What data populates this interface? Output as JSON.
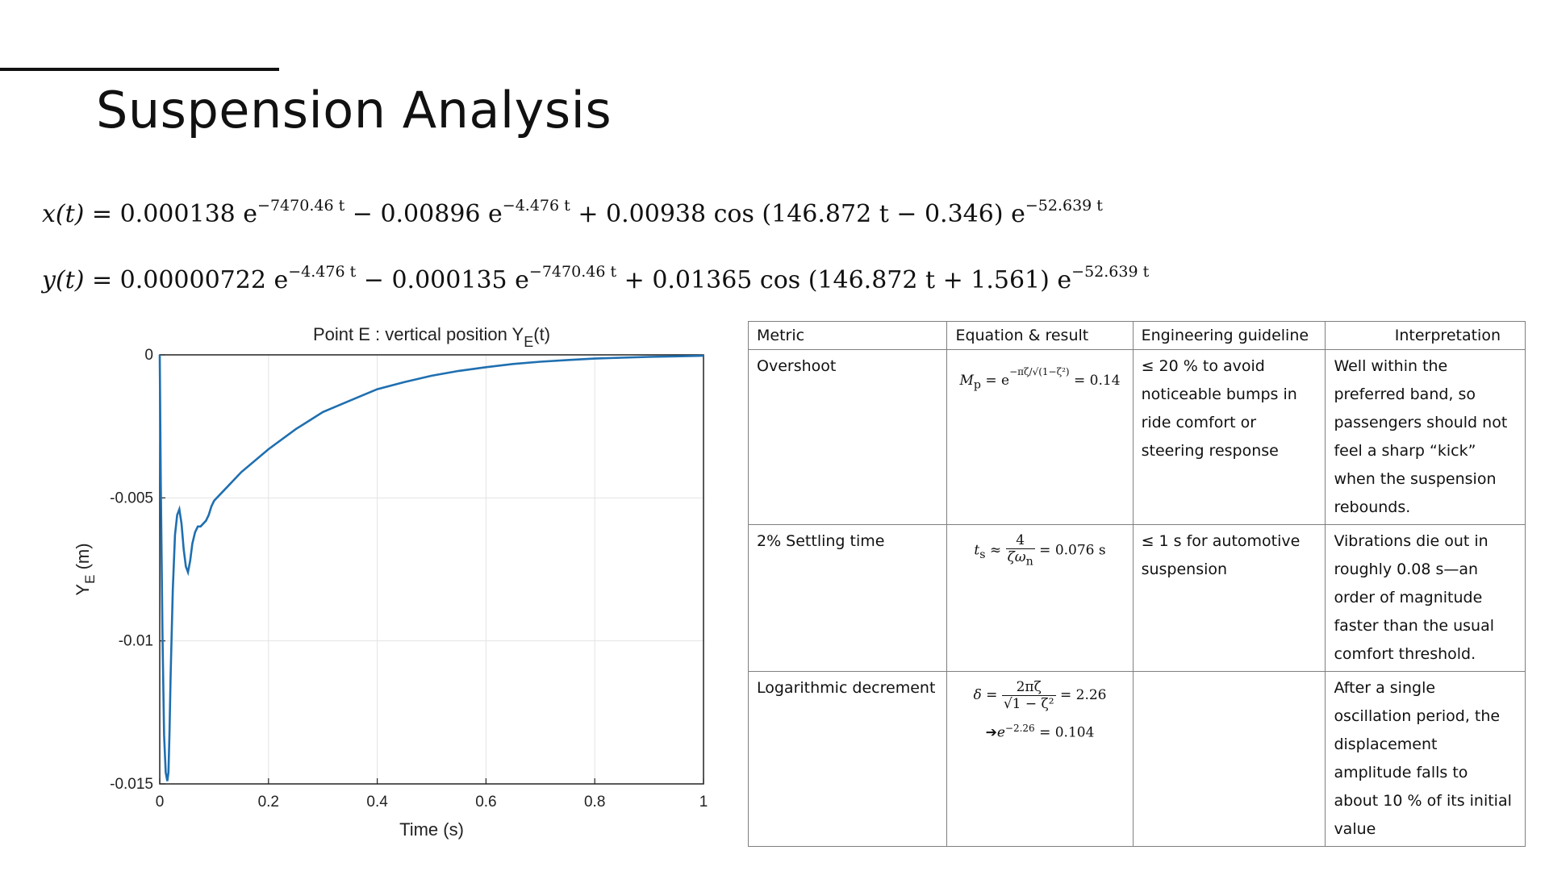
{
  "slide": {
    "title": "Suspension Analysis"
  },
  "equations": {
    "x": {
      "lhs": "x(t) = ",
      "t1_coef": "0.000138",
      "t1_exp": "−7470.46 t",
      "op2": " − ",
      "t2_coef": "0.00896",
      "t2_exp": "−4.476 t",
      "op3": " + ",
      "t3_text": "0.00938 cos (146.872 t − 0.346) e",
      "t3_exp": "−52.639 t"
    },
    "y": {
      "lhs": "y(t) = ",
      "t1_coef": "0.00000722",
      "t1_exp": "−4.476 t",
      "op2": " − ",
      "t2_coef": "0.000135",
      "t2_exp": "−7470.46 t",
      "op3": " + ",
      "t3_text": "0.01365 cos (146.872 t + 1.561) e",
      "t3_exp": "−52.639 t"
    }
  },
  "chart_data": {
    "type": "line",
    "title_main": "Point E : vertical position  Y",
    "title_sub": "E",
    "title_tail": "(t)",
    "xlabel": "Time (s)",
    "ylabel_main": "Y",
    "ylabel_sub": "E",
    "ylabel_tail": " (m)",
    "xlim": [
      0,
      1
    ],
    "ylim": [
      -0.015,
      0
    ],
    "x_ticks": [
      0,
      0.2,
      0.4,
      0.6,
      0.8,
      1
    ],
    "x_tick_labels": [
      "0",
      "0.2",
      "0.4",
      "0.6",
      "0.8",
      "1"
    ],
    "y_ticks": [
      0,
      -0.005,
      -0.01,
      -0.015
    ],
    "y_tick_labels": [
      "0",
      "-0.005",
      "-0.01",
      "-0.015"
    ],
    "grid": true,
    "line_color": "#1f6fb0",
    "series": [
      {
        "x": [
          0,
          0.002,
          0.005,
          0.008,
          0.011,
          0.014,
          0.016,
          0.018,
          0.02,
          0.024,
          0.028,
          0.032,
          0.036,
          0.04,
          0.044,
          0.048,
          0.052,
          0.056,
          0.06,
          0.065,
          0.07,
          0.075,
          0.08,
          0.085,
          0.09,
          0.095,
          0.1,
          0.11,
          0.12,
          0.15,
          0.2,
          0.25,
          0.3,
          0.35,
          0.4,
          0.45,
          0.5,
          0.55,
          0.6,
          0.65,
          0.7,
          0.75,
          0.8,
          0.85,
          0.9,
          0.95,
          1.0
        ],
        "y": [
          0,
          -0.0045,
          -0.0098,
          -0.0133,
          -0.0146,
          -0.0149,
          -0.0146,
          -0.0132,
          -0.0112,
          -0.0082,
          -0.0063,
          -0.0056,
          -0.0054,
          -0.0059,
          -0.0068,
          -0.0074,
          -0.0076,
          -0.0072,
          -0.0066,
          -0.0062,
          -0.006,
          -0.006,
          -0.0059,
          -0.0058,
          -0.0056,
          -0.0053,
          -0.0051,
          -0.0049,
          -0.0047,
          -0.0041,
          -0.0033,
          -0.0026,
          -0.002,
          -0.0016,
          -0.0012,
          -0.00095,
          -0.00073,
          -0.00056,
          -0.00043,
          -0.00032,
          -0.00024,
          -0.00018,
          -0.00013,
          -0.0001,
          -7e-05,
          -5e-05,
          -3e-05
        ]
      }
    ]
  },
  "table": {
    "headers": [
      "Metric",
      "Equation & result",
      "Engineering guideline",
      "Interpretation"
    ],
    "rows": [
      {
        "metric": "Overshoot",
        "eq_lhs": "M",
        "eq_lhs_sub": "p",
        "eq_mid": " = e",
        "eq_exp": "−πζ/√(1−ζ²)",
        "eq_rhs": " = 0.14",
        "guideline": "≤ 20 % to avoid noticeable bumps in ride comfort or steering response",
        "interpretation": "Well within the preferred band, so passengers should not feel a sharp “kick” when the suspension rebounds."
      },
      {
        "metric": "2% Settling time",
        "eq_lhs": "t",
        "eq_lhs_sub": "s",
        "eq_mid": " ≈ ",
        "eq_num": "4",
        "eq_den": "ζω",
        "eq_den_sub": "n",
        "eq_rhs": " = 0.076 s",
        "guideline": "≤ 1 s for automotive suspension",
        "interpretation": "Vibrations die out in roughly 0.08 s—an order of magnitude faster than the usual comfort threshold."
      },
      {
        "metric": "Logarithmic decrement",
        "eq_lhs": "δ = ",
        "eq_num": "2πζ",
        "eq_den": "√1 − ζ²",
        "eq_rhs": " = 2.26",
        "eq2_arrow": "➔",
        "eq2_base": "e",
        "eq2_exp": "−2.26",
        "eq2_rhs": " = 0.104",
        "guideline": "",
        "interpretation": "After a single oscillation period, the displacement amplitude falls to about 10 % of its initial value"
      }
    ]
  }
}
